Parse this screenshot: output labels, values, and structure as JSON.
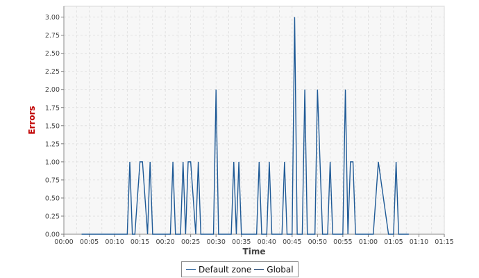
{
  "chart_data": {
    "type": "line",
    "xlabel": "Time",
    "ylabel": "Errors",
    "x_tick_labels": [
      "00:00",
      "00:05",
      "00:10",
      "00:15",
      "00:20",
      "00:25",
      "00:30",
      "00:35",
      "00:40",
      "00:45",
      "00:50",
      "00:55",
      "01:00",
      "01:05",
      "01:10",
      "01:15"
    ],
    "y_tick_labels": [
      "0.00",
      "0.25",
      "0.50",
      "0.75",
      "1.00",
      "1.25",
      "1.50",
      "1.75",
      "2.00",
      "2.25",
      "2.50",
      "2.75",
      "3.00"
    ],
    "xlim": [
      0,
      75
    ],
    "ylim": [
      0,
      3.15
    ],
    "x_unit": "minutes",
    "grid": true,
    "legend_position": "bottom-center",
    "series": [
      {
        "name": "Default zone",
        "color": "#1f5a96",
        "x": [
          3.5,
          4,
          6,
          8,
          10,
          12,
          12.5,
          13.0,
          13.5,
          14,
          15,
          15.5,
          16.5,
          17,
          17.5,
          18,
          20,
          21,
          21.5,
          22,
          23,
          23.5,
          24,
          24.5,
          25,
          26,
          26.5,
          27,
          29.5,
          30,
          30.5,
          31,
          33,
          33.5,
          34,
          34.5,
          35,
          35.5,
          36,
          38,
          38.5,
          39,
          40,
          40.5,
          41,
          43,
          43.5,
          44,
          45,
          45.5,
          46,
          47,
          47.5,
          48,
          49,
          49.5,
          50,
          51,
          52,
          52.5,
          53,
          55,
          55.5,
          56,
          56.5,
          57,
          57.5,
          58,
          59,
          59.5,
          61,
          62,
          64,
          65,
          65.5,
          66,
          67,
          67.5,
          68
        ],
        "y": [
          0,
          0,
          0,
          0,
          0,
          0,
          0,
          1,
          0,
          0,
          1,
          1,
          0,
          1,
          0,
          0,
          0,
          0,
          1,
          0,
          0,
          1,
          0,
          1,
          1,
          0,
          1,
          0,
          0,
          2,
          0,
          0,
          0,
          1,
          0,
          1,
          0,
          0,
          0,
          0,
          1,
          0,
          0,
          1,
          0,
          0,
          1,
          0,
          0,
          3,
          0,
          0,
          2,
          0,
          0,
          0,
          2,
          0,
          0,
          1,
          0,
          0,
          2,
          0,
          1,
          1,
          0,
          0,
          0,
          0,
          0,
          1,
          0,
          0,
          1,
          0,
          0,
          0,
          0
        ]
      },
      {
        "name": "Global",
        "color": "#1a3f6b",
        "x": [],
        "y": []
      }
    ]
  },
  "legend": {
    "items": [
      {
        "label": "Default zone",
        "color": "#1f5a96"
      },
      {
        "label": "Global",
        "color": "#1a3f6b"
      }
    ]
  }
}
